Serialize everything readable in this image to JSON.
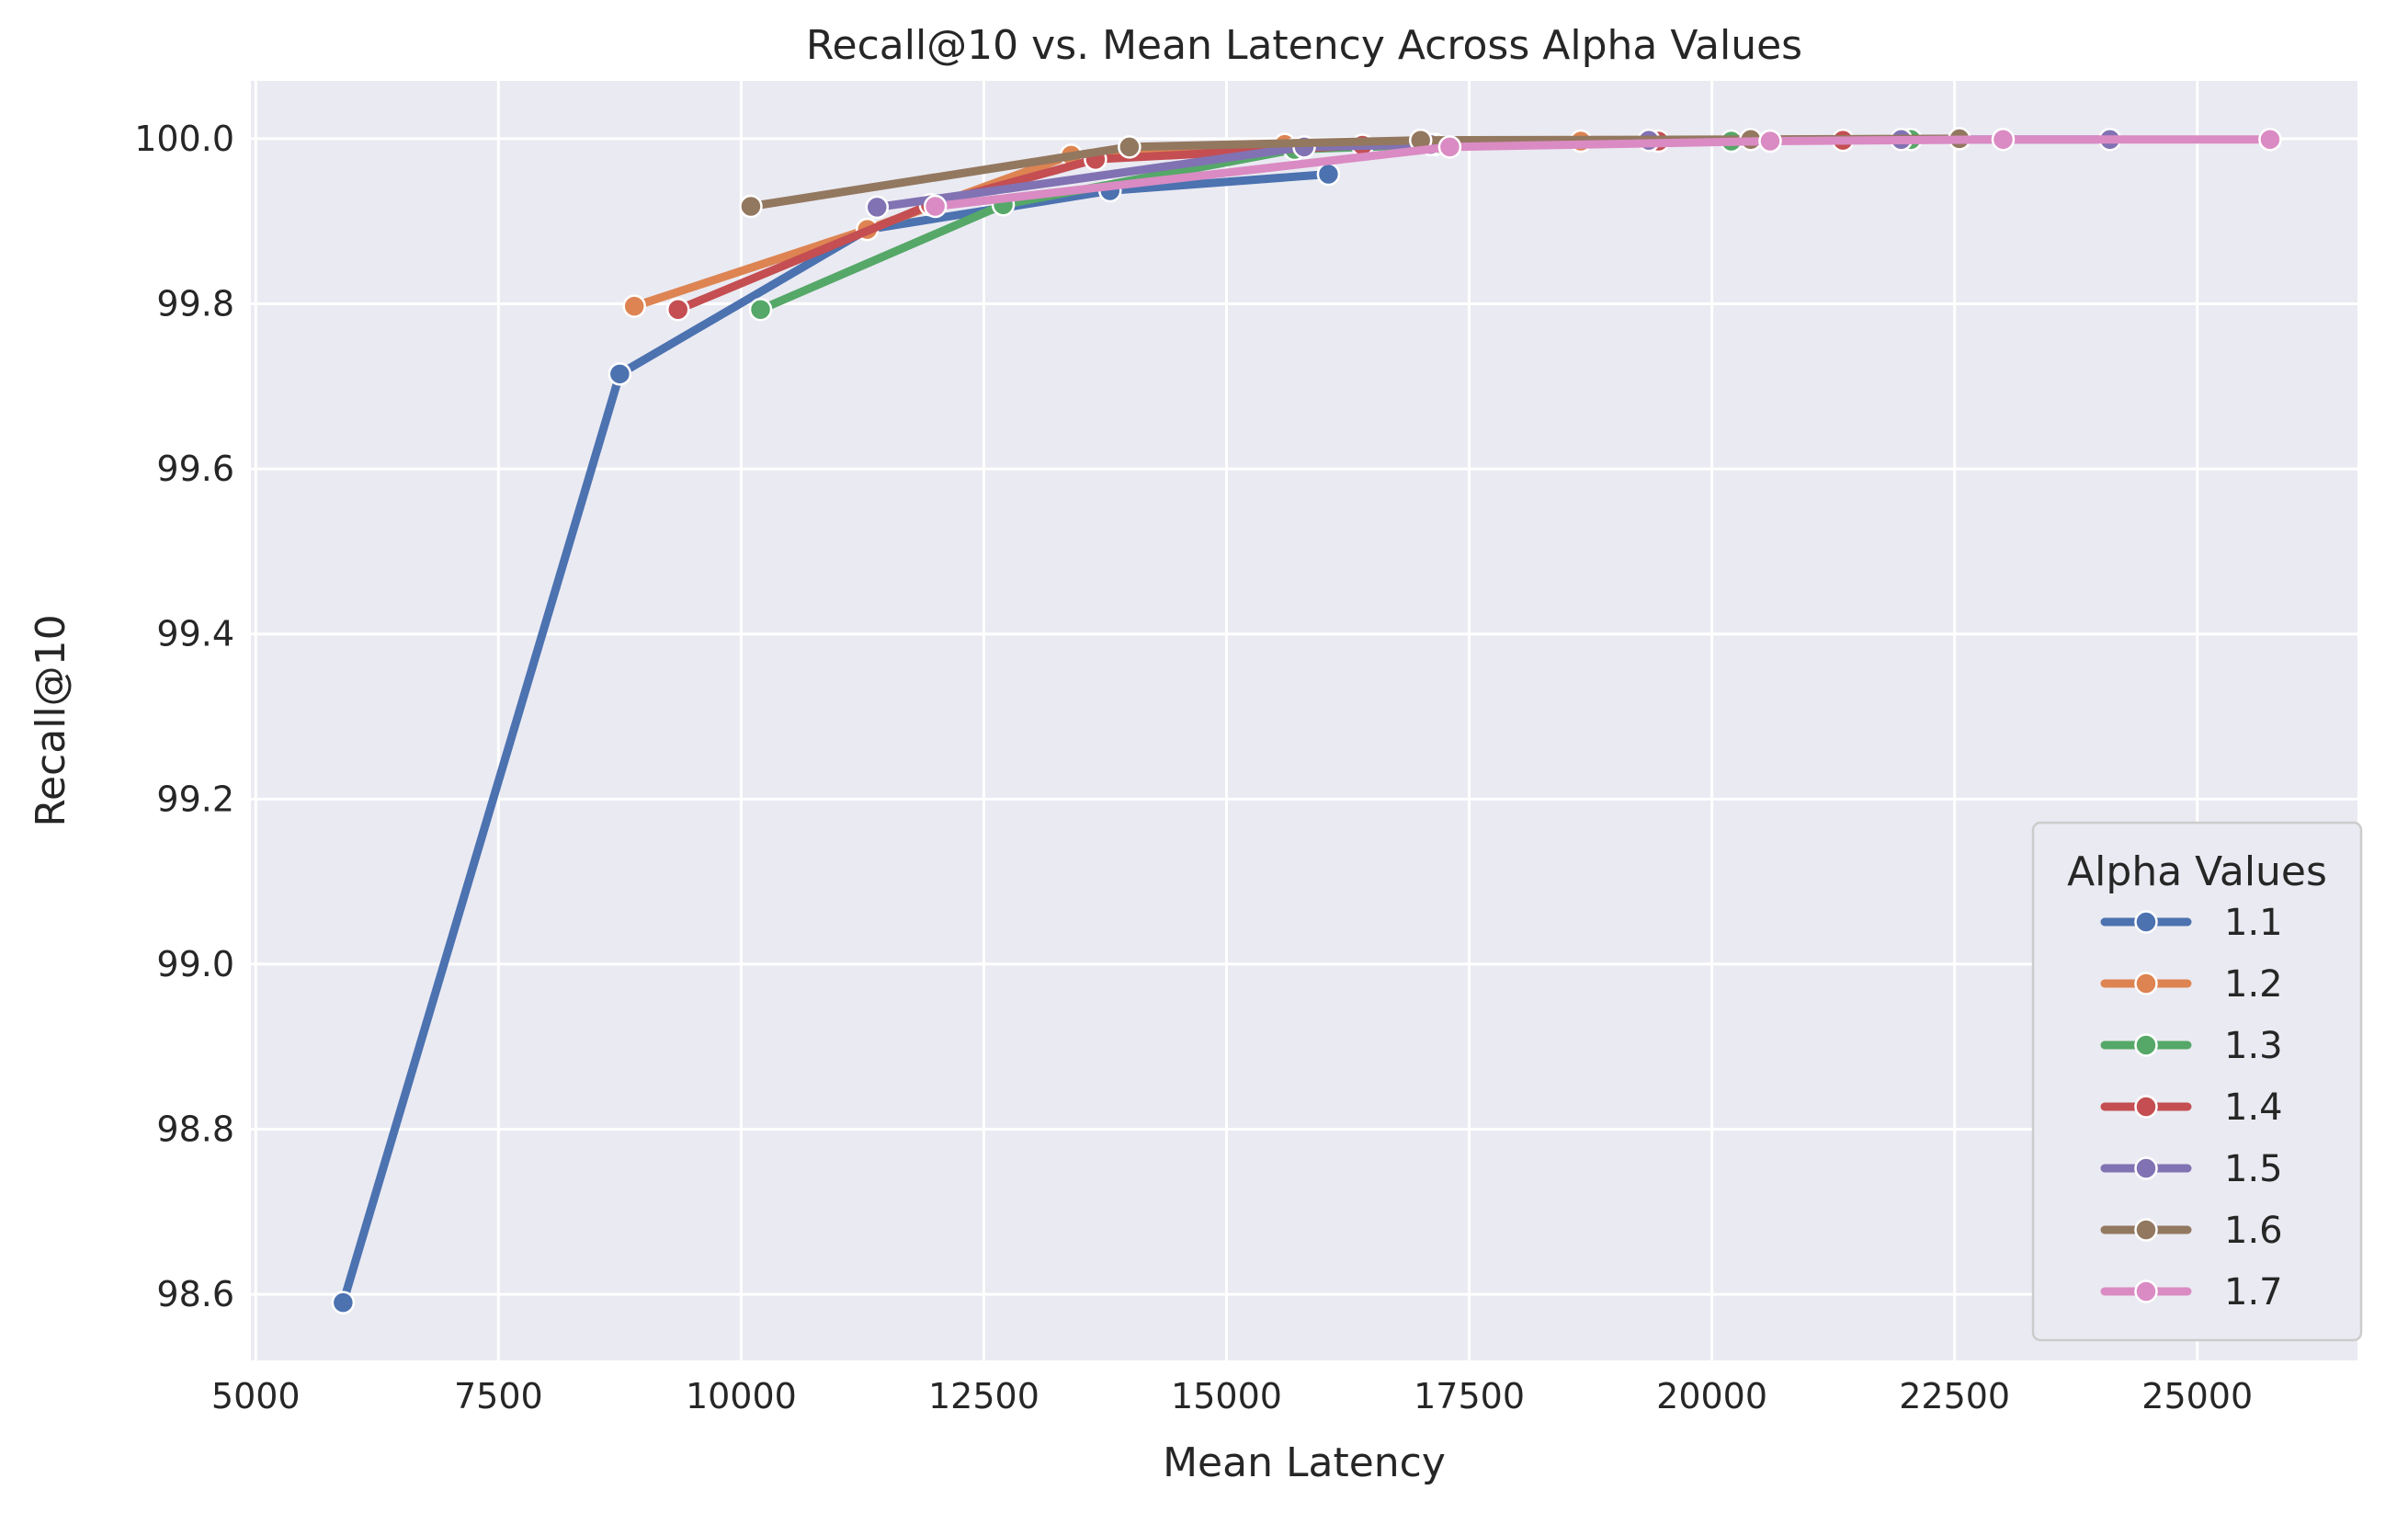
{
  "chart_data": {
    "type": "line",
    "title": "Recall@10 vs. Mean Latency Across Alpha Values",
    "xlabel": "Mean Latency",
    "ylabel": "Recall@10",
    "xlim": [
      4950,
      26650
    ],
    "ylim": [
      98.52,
      100.07
    ],
    "xticks": [
      5000,
      7500,
      10000,
      12500,
      15000,
      17500,
      20000,
      22500,
      25000
    ],
    "yticks": [
      98.6,
      98.8,
      99.0,
      99.2,
      99.4,
      99.6,
      99.8,
      100.0
    ],
    "grid": true,
    "legend": {
      "title": "Alpha Values",
      "placement": "lower-right"
    },
    "series": [
      {
        "name": "1.1",
        "color": "#4c72b0",
        "x": [
          5900,
          8750,
          11300,
          13800,
          16050
        ],
        "y": [
          98.59,
          99.715,
          99.89,
          99.937,
          99.957
        ]
      },
      {
        "name": "1.2",
        "color": "#dd8452",
        "x": [
          8900,
          11300,
          13400,
          15600,
          18650
        ],
        "y": [
          99.797,
          99.89,
          99.98,
          99.993,
          99.997
        ]
      },
      {
        "name": "1.3",
        "color": "#55a868",
        "x": [
          10200,
          12700,
          15700,
          17150,
          20200,
          22050
        ],
        "y": [
          99.793,
          99.92,
          99.987,
          99.993,
          99.997,
          99.999
        ]
      },
      {
        "name": "1.4",
        "color": "#c44e52",
        "x": [
          9350,
          11950,
          13650,
          16400,
          19450,
          21350
        ],
        "y": [
          99.793,
          99.92,
          99.975,
          99.992,
          99.997,
          99.998
        ]
      },
      {
        "name": "1.5",
        "color": "#8172b3",
        "x": [
          11400,
          15800,
          17100,
          19350,
          21950,
          24100
        ],
        "y": [
          99.917,
          99.99,
          99.993,
          99.998,
          99.999,
          99.999
        ]
      },
      {
        "name": "1.6",
        "color": "#937860",
        "x": [
          10100,
          14000,
          17000,
          20400,
          22550
        ],
        "y": [
          99.918,
          99.99,
          99.998,
          99.999,
          100.0
        ]
      },
      {
        "name": "1.7",
        "color": "#da8bc3",
        "x": [
          12000,
          17300,
          20600,
          23000,
          25750
        ],
        "y": [
          99.918,
          99.99,
          99.997,
          99.999,
          99.999
        ]
      }
    ]
  }
}
